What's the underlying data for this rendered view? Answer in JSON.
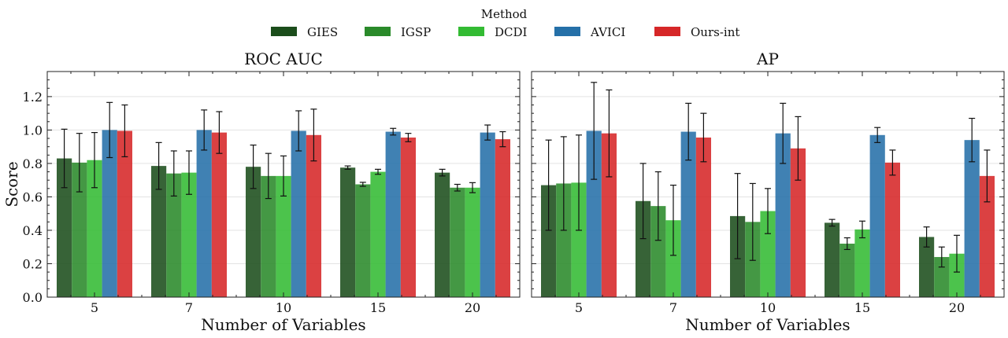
{
  "legend": {
    "title": "Method",
    "items": [
      {
        "label": "GIES",
        "color": "#1b4d1b"
      },
      {
        "label": "IGSP",
        "color": "#2a8a2a"
      },
      {
        "label": "DCDI",
        "color": "#33bb33"
      },
      {
        "label": "AVICI",
        "color": "#2570a8"
      },
      {
        "label": "Ours-int",
        "color": "#d62728"
      }
    ]
  },
  "chart_data": [
    {
      "type": "bar",
      "title": "ROC AUC",
      "xlabel": "Number of Variables",
      "ylabel": "Score",
      "ylim": [
        0,
        1.35
      ],
      "yticks": [
        "0.0",
        "0.2",
        "0.4",
        "0.6",
        "0.8",
        "1.0",
        "1.2"
      ],
      "categories": [
        "5",
        "7",
        "10",
        "15",
        "20"
      ],
      "series": [
        {
          "name": "GIES",
          "values": [
            0.83,
            0.785,
            0.78,
            0.775,
            0.745
          ],
          "err": [
            0.175,
            0.14,
            0.13,
            0.01,
            0.02
          ]
        },
        {
          "name": "IGSP",
          "values": [
            0.805,
            0.74,
            0.725,
            0.675,
            0.655
          ],
          "err": [
            0.175,
            0.135,
            0.135,
            0.012,
            0.02
          ]
        },
        {
          "name": "DCDI",
          "values": [
            0.82,
            0.745,
            0.725,
            0.75,
            0.655
          ],
          "err": [
            0.165,
            0.13,
            0.12,
            0.015,
            0.03
          ]
        },
        {
          "name": "AVICI",
          "values": [
            1.0,
            1.0,
            0.995,
            0.99,
            0.985
          ],
          "err": [
            0.165,
            0.12,
            0.12,
            0.02,
            0.045
          ]
        },
        {
          "name": "Ours-int",
          "values": [
            0.995,
            0.985,
            0.97,
            0.955,
            0.945
          ],
          "err": [
            0.155,
            0.125,
            0.155,
            0.025,
            0.045
          ]
        }
      ]
    },
    {
      "type": "bar",
      "title": "AP",
      "xlabel": "Number of Variables",
      "ylabel": "",
      "ylim": [
        0,
        1.35
      ],
      "yticks": [],
      "categories": [
        "5",
        "7",
        "10",
        "15",
        "20"
      ],
      "series": [
        {
          "name": "GIES",
          "values": [
            0.67,
            0.575,
            0.485,
            0.445,
            0.36
          ],
          "err": [
            0.27,
            0.225,
            0.255,
            0.02,
            0.06
          ]
        },
        {
          "name": "IGSP",
          "values": [
            0.68,
            0.545,
            0.45,
            0.32,
            0.24
          ],
          "err": [
            0.28,
            0.205,
            0.23,
            0.035,
            0.06
          ]
        },
        {
          "name": "DCDI",
          "values": [
            0.685,
            0.46,
            0.515,
            0.405,
            0.26
          ],
          "err": [
            0.285,
            0.21,
            0.135,
            0.05,
            0.11
          ]
        },
        {
          "name": "AVICI",
          "values": [
            0.995,
            0.99,
            0.98,
            0.97,
            0.94
          ],
          "err": [
            0.29,
            0.17,
            0.18,
            0.045,
            0.13
          ]
        },
        {
          "name": "Ours-int",
          "values": [
            0.98,
            0.955,
            0.89,
            0.805,
            0.725
          ],
          "err": [
            0.26,
            0.145,
            0.19,
            0.075,
            0.155
          ]
        }
      ]
    }
  ]
}
